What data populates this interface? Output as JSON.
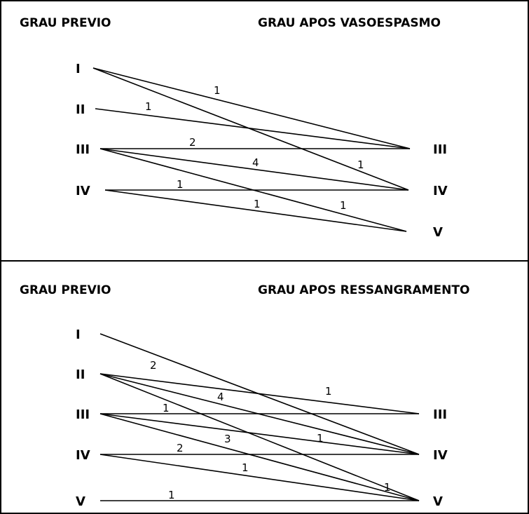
{
  "panels": [
    {
      "header_left": "GRAU PREVIO",
      "header_right": "GRAU APOS VASOESPASMO",
      "left_grades": [
        "I",
        "II",
        "III",
        "IV"
      ],
      "right_grades": [
        "III",
        "IV",
        "V"
      ],
      "transitions": [
        {
          "from": "I",
          "to": "III",
          "count": "1"
        },
        {
          "from": "I",
          "to": "IV",
          "count": "1"
        },
        {
          "from": "II",
          "to": "III",
          "count": "1"
        },
        {
          "from": "III",
          "to": "III",
          "count": "2"
        },
        {
          "from": "III",
          "to": "IV",
          "count": "4"
        },
        {
          "from": "III",
          "to": "V",
          "count": "1"
        },
        {
          "from": "IV",
          "to": "IV",
          "count": "1"
        },
        {
          "from": "IV",
          "to": "V",
          "count": "1"
        }
      ]
    },
    {
      "header_left": "GRAU PREVIO",
      "header_right": "GRAU APOS RESSANGRAMENTO",
      "left_grades": [
        "I",
        "II",
        "III",
        "IV",
        "V"
      ],
      "right_grades": [
        "III",
        "IV",
        "V"
      ],
      "transitions": [
        {
          "from": "I",
          "to": "IV",
          "count": "2"
        },
        {
          "from": "II",
          "to": "III",
          "count": "1"
        },
        {
          "from": "II",
          "to": "IV",
          "count": "4"
        },
        {
          "from": "II",
          "to": "V",
          "count": "1"
        },
        {
          "from": "III",
          "to": "III",
          "count": "1"
        },
        {
          "from": "III",
          "to": "IV",
          "count": "1"
        },
        {
          "from": "III",
          "to": "V",
          "count": "3"
        },
        {
          "from": "IV",
          "to": "IV",
          "count": "2"
        },
        {
          "from": "IV",
          "to": "V",
          "count": "1"
        },
        {
          "from": "V",
          "to": "V",
          "count": "1"
        }
      ]
    }
  ]
}
